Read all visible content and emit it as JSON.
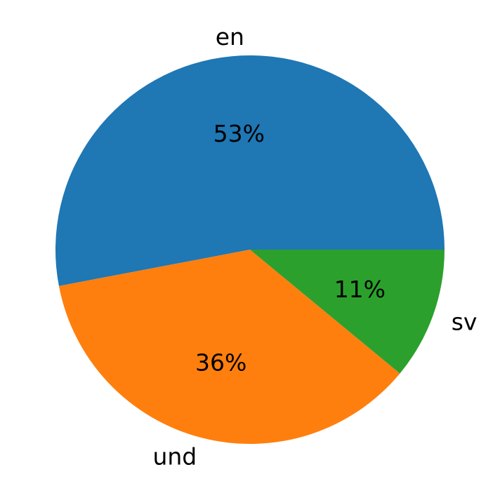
{
  "chart_data": {
    "type": "pie",
    "title": "",
    "start_angle_deg": 0,
    "direction": "counterclockwise",
    "grid": false,
    "legend": "none",
    "slices": [
      {
        "label": "en",
        "value": 53,
        "pct_label": "53%",
        "color": "#1f77b4"
      },
      {
        "label": "und",
        "value": 36,
        "pct_label": "36%",
        "color": "#ff7f0e"
      },
      {
        "label": "sv",
        "value": 11,
        "pct_label": "11%",
        "color": "#2ca02c"
      }
    ]
  }
}
